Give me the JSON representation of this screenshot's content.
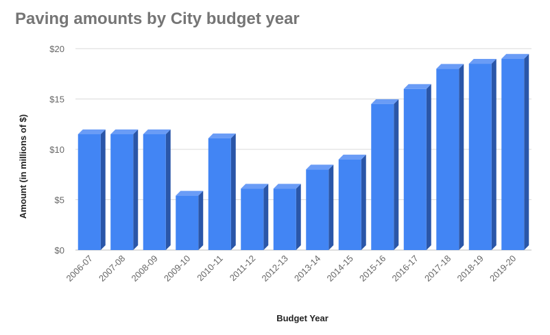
{
  "chart_data": {
    "type": "bar",
    "title": "Paving amounts by City budget year",
    "xlabel": "Budget Year",
    "ylabel": "Amount (in millions of $)",
    "categories": [
      "2006-07",
      "2007-08",
      "2008-09",
      "2009-10",
      "2010-11",
      "2011-12",
      "2012-13",
      "2013-14",
      "2014-15",
      "2015-16",
      "2016-17",
      "2017-18",
      "2018-19",
      "2019-20"
    ],
    "values": [
      11.5,
      11.5,
      11.5,
      5.4,
      11.1,
      6.1,
      6.1,
      8.0,
      9.0,
      14.5,
      16.0,
      18.0,
      18.5,
      19.0
    ],
    "ylim": [
      0,
      20
    ],
    "yticks": [
      0,
      5,
      10,
      15,
      20
    ],
    "ytick_labels": [
      "$0",
      "$5",
      "$10",
      "$15",
      "$20"
    ],
    "grid": true,
    "bar_style": "3d",
    "colors": {
      "bar_front": "#4285F4",
      "bar_side": "#2A56A8",
      "bar_top": "#6A9CF6",
      "grid": "#D9D9D9",
      "title": "#757575"
    }
  }
}
